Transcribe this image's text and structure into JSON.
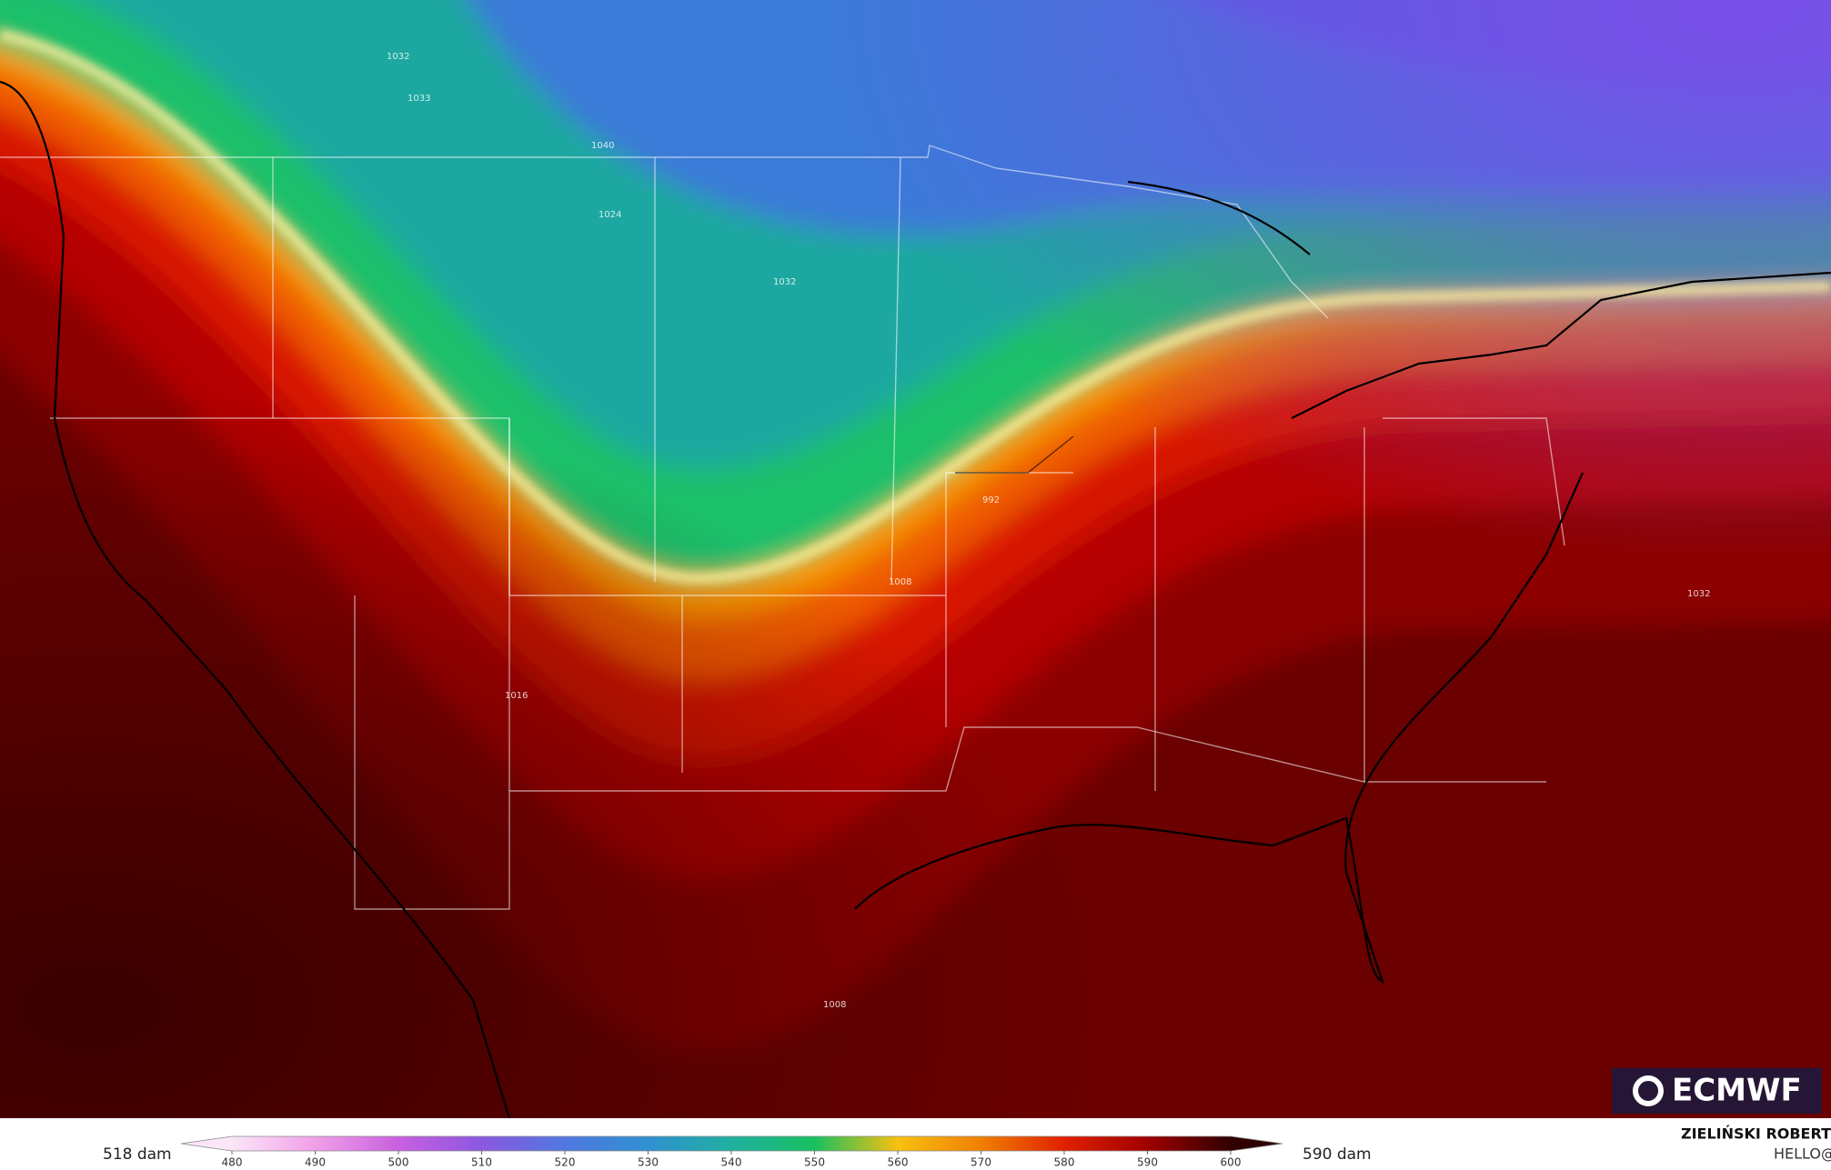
{
  "map": {
    "isobar_labels": [
      "1032",
      "1033",
      "1040",
      "1024",
      "1032",
      "992",
      "1008",
      "1016",
      "1032",
      "1008"
    ]
  },
  "legend": {
    "min_label": "518 dam",
    "max_label": "590 dam",
    "ticks": [
      480,
      490,
      500,
      510,
      520,
      530,
      540,
      550,
      560,
      570,
      580,
      590,
      600
    ],
    "colors": [
      "#fbe6f8",
      "#f0a0e8",
      "#c860e0",
      "#8c58e0",
      "#5078e0",
      "#3090d0",
      "#20b0a0",
      "#18c060",
      "#f8c010",
      "#f08000",
      "#e02000",
      "#a00000",
      "#300000"
    ]
  },
  "logo": "ECMWF",
  "credit": {
    "author": "ZIELIŃSKI ROBERT",
    "email": "HELLO@ROBERTZ.CO"
  }
}
